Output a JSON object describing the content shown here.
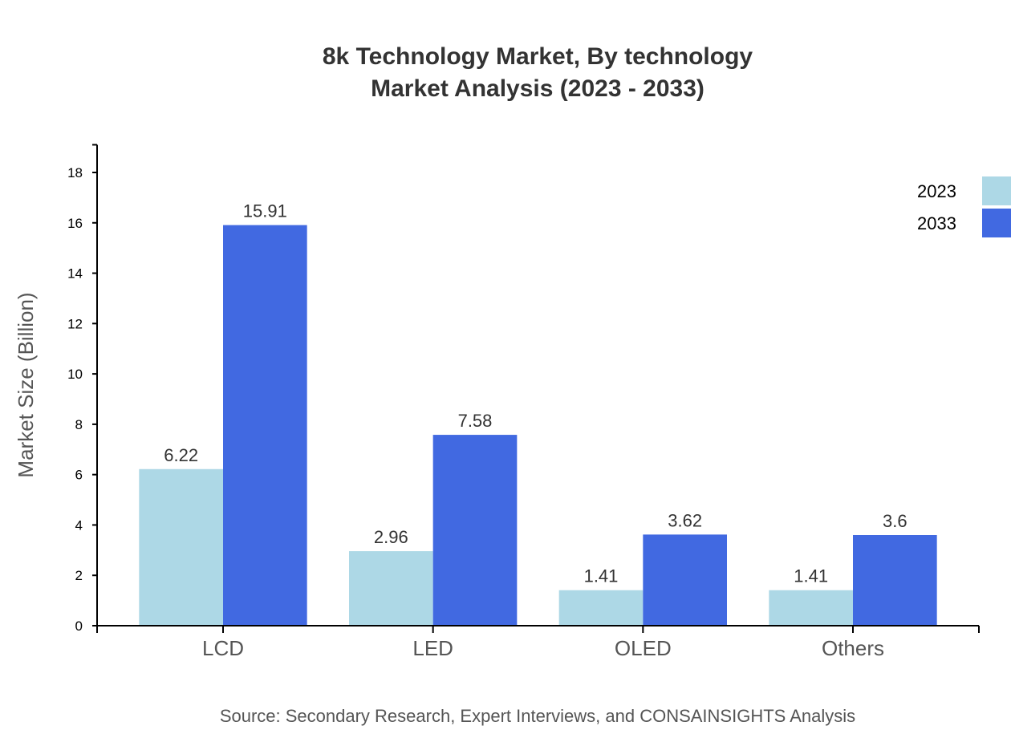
{
  "chart_data": {
    "type": "bar",
    "title_line1": "8k Technology Market, By technology",
    "title_line2": "Market Analysis (2023 - 2033)",
    "xlabel": "",
    "ylabel": "Market Size (Billion)",
    "ylim": [
      0,
      19.1
    ],
    "yticks": [
      0,
      2,
      4,
      6,
      8,
      10,
      12,
      14,
      16,
      18
    ],
    "categories": [
      "LCD",
      "LED",
      "OLED",
      "Others"
    ],
    "series": [
      {
        "name": "2023",
        "color": "#add8e6",
        "values": [
          6.22,
          2.96,
          1.41,
          1.41
        ]
      },
      {
        "name": "2033",
        "color": "#4169e1",
        "values": [
          15.91,
          7.58,
          3.62,
          3.6
        ]
      }
    ],
    "grid": false,
    "legend_position": "top-right",
    "source": "Source: Secondary Research, Expert Interviews, and CONSAINSIGHTS Analysis"
  }
}
